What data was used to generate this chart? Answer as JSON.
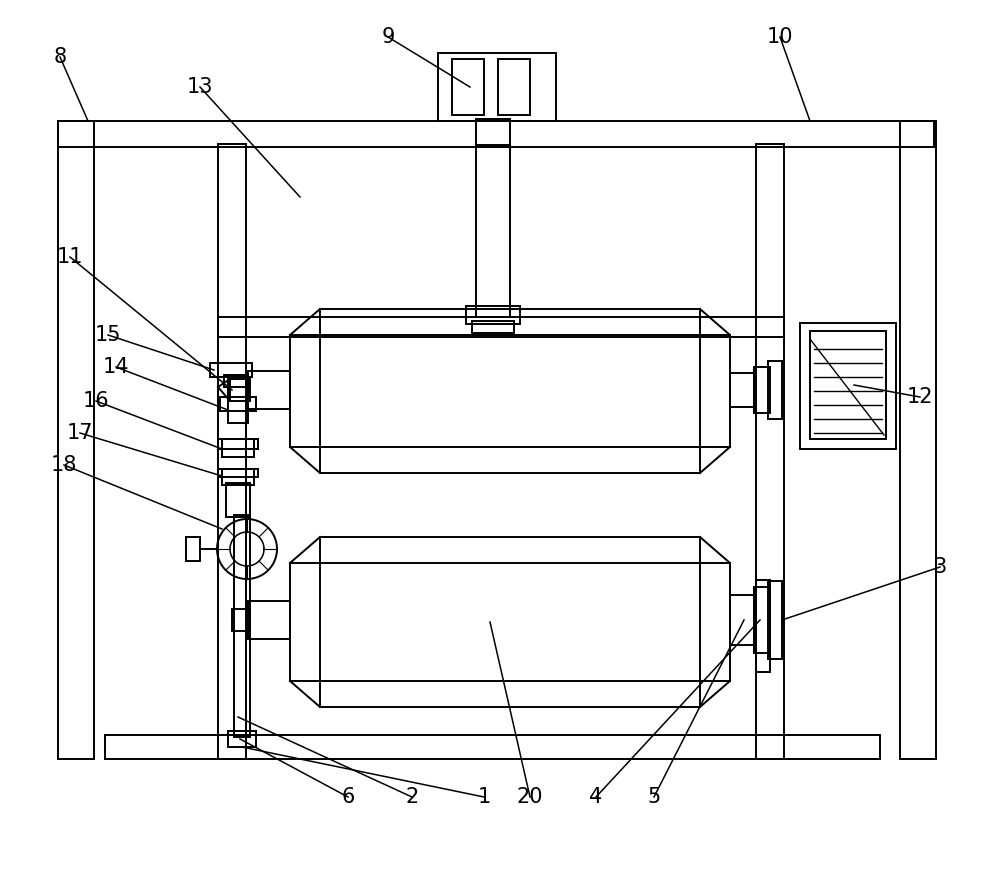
{
  "background_color": "#ffffff",
  "line_color": "#000000",
  "line_width": 1.4,
  "fig_width": 10.0,
  "fig_height": 8.77,
  "dpi": 100
}
